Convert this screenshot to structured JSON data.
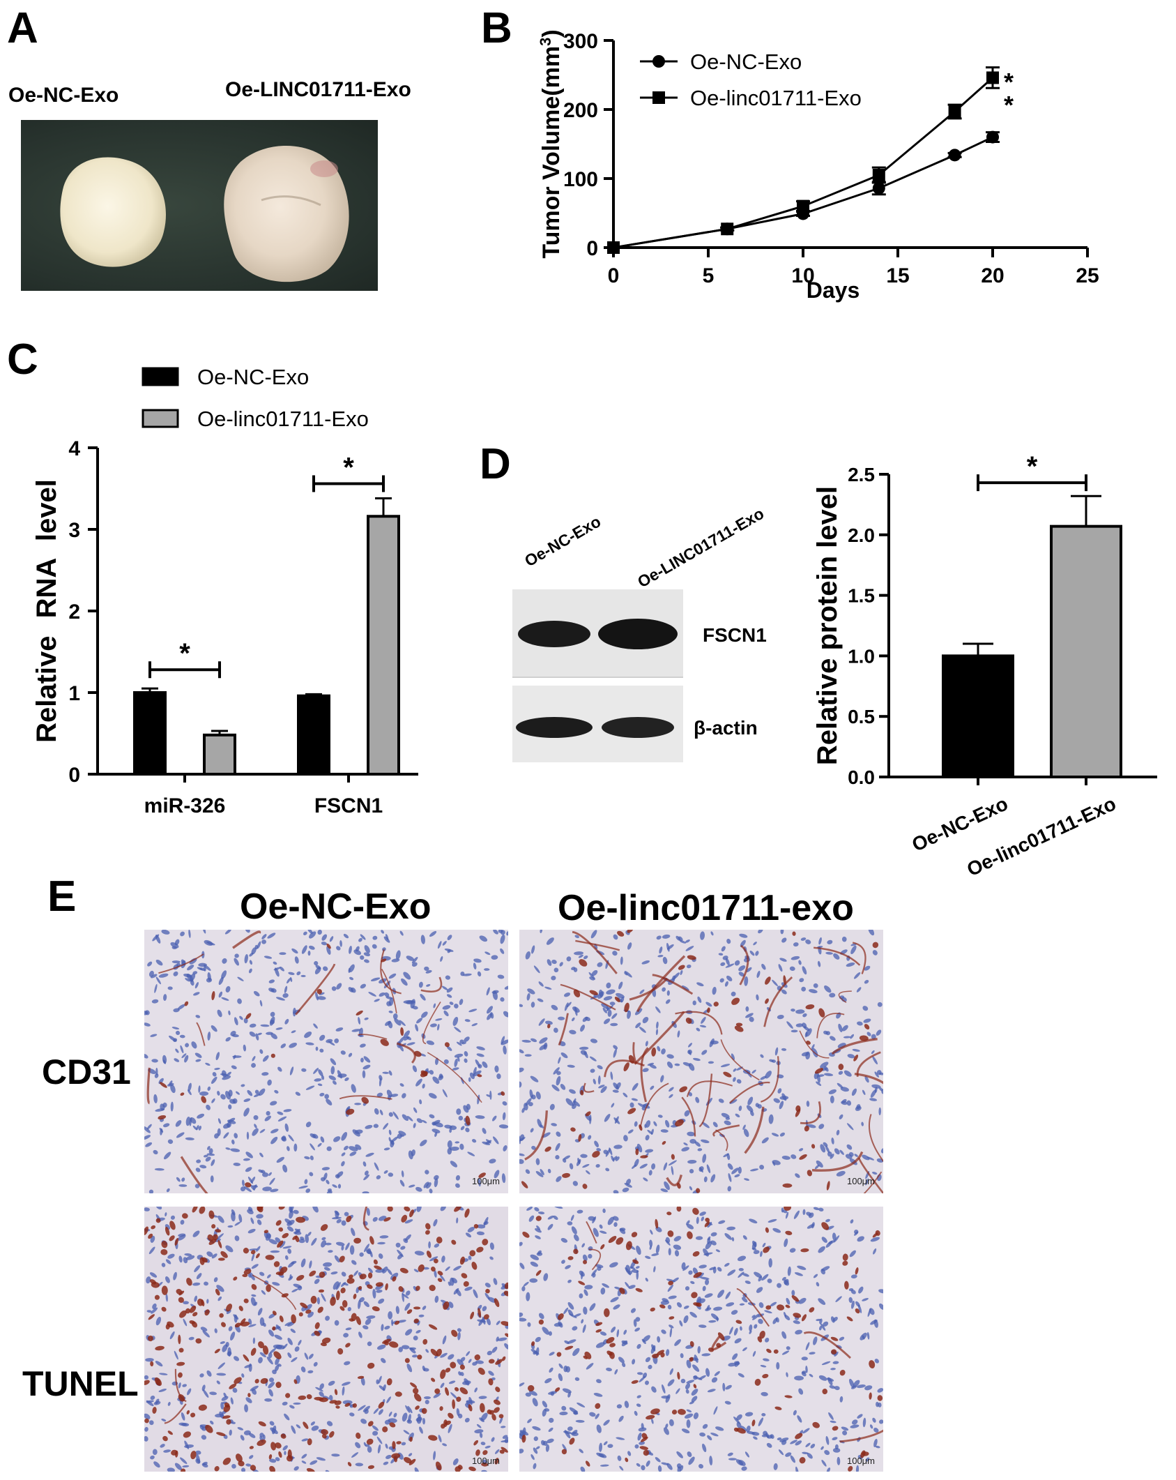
{
  "panels": {
    "A": {
      "letter": "A",
      "label_left": "Oe-NC-Exo",
      "label_right": "Oe-LINC01711-Exo"
    },
    "B": {
      "letter": "B"
    },
    "C": {
      "letter": "C"
    },
    "D": {
      "letter": "D",
      "blot_lane_labels": [
        "Oe-NC-Exo",
        "Oe-LINC01711-Exo"
      ],
      "blot_bands": [
        "FSCN1",
        "β-actin"
      ]
    },
    "E": {
      "letter": "E",
      "col_labels": [
        "Oe-NC-Exo",
        "Oe-linc01711-exo"
      ],
      "row_labels": [
        "CD31",
        "TUNEL"
      ],
      "scale_bar": "100μm"
    }
  },
  "colors": {
    "nc_bar": "#000000",
    "linc_bar": "#a6a6a6",
    "axis": "#000000",
    "stain_nuclei": "#4a5fb0",
    "stain_brown": "#8b2a1a"
  },
  "chart_data": [
    {
      "panel": "B",
      "type": "line",
      "xlabel": "Days",
      "ylabel": "Tumor Volume(mm3)",
      "xlim": [
        0,
        25
      ],
      "ylim": [
        0,
        300
      ],
      "xticks": [
        0,
        5,
        10,
        15,
        20,
        25
      ],
      "yticks": [
        0,
        100,
        200,
        300
      ],
      "legend_position": "top-left",
      "series": [
        {
          "name": "Oe-NC-Exo",
          "marker": "circle",
          "x": [
            0,
            6,
            10,
            14,
            18,
            20
          ],
          "y": [
            0,
            27,
            49,
            86,
            134,
            160
          ],
          "err": [
            0,
            2,
            3,
            9,
            3,
            7
          ]
        },
        {
          "name": "Oe-linc01711-Exo",
          "marker": "square",
          "x": [
            0,
            6,
            10,
            14,
            18,
            20
          ],
          "y": [
            0,
            27,
            60,
            105,
            197,
            246
          ],
          "err": [
            0,
            2,
            7,
            11,
            10,
            15
          ]
        }
      ],
      "annotations": [
        "*",
        "*"
      ]
    },
    {
      "panel": "C",
      "type": "bar",
      "ylabel": "Relative RNA level",
      "ylim": [
        0,
        4
      ],
      "yticks": [
        0,
        1,
        2,
        3,
        4
      ],
      "categories": [
        "miR-326",
        "FSCN1"
      ],
      "legend_position": "top",
      "series": [
        {
          "name": "Oe-NC-Exo",
          "values": [
            1.0,
            0.96
          ],
          "err": [
            0.05,
            0.02
          ]
        },
        {
          "name": "Oe-linc01711-Exo",
          "values": [
            0.48,
            3.16
          ],
          "err": [
            0.05,
            0.22
          ]
        }
      ],
      "annotations": [
        "*",
        "*"
      ]
    },
    {
      "panel": "D",
      "type": "bar",
      "ylabel": "Relative protein level",
      "ylim": [
        0,
        2.5
      ],
      "yticks": [
        "0.0",
        "0.5",
        "1.0",
        "1.5",
        "2.0",
        "2.5"
      ],
      "categories": [
        "Oe-NC-Exo",
        "Oe-linc01711-Exo"
      ],
      "values": [
        1.0,
        2.07
      ],
      "err": [
        0.1,
        0.25
      ],
      "annotations": [
        "*"
      ]
    }
  ]
}
